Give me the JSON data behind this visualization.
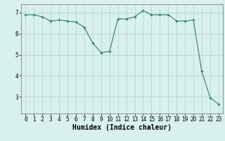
{
  "x": [
    0,
    1,
    2,
    3,
    4,
    5,
    6,
    7,
    8,
    9,
    10,
    11,
    12,
    13,
    14,
    15,
    16,
    17,
    18,
    19,
    20,
    21,
    22,
    23
  ],
  "y": [
    6.9,
    6.9,
    6.8,
    6.6,
    6.65,
    6.6,
    6.55,
    6.3,
    5.55,
    5.1,
    5.15,
    6.7,
    6.7,
    6.8,
    7.1,
    6.9,
    6.9,
    6.9,
    6.6,
    6.6,
    6.65,
    4.2,
    2.95,
    2.65
  ],
  "line_color": "#2e7d6e",
  "marker": "+",
  "marker_size": 3,
  "marker_lw": 0.8,
  "line_width": 0.8,
  "bg_color": "#d8f0ee",
  "grid_color": "#aed4ce",
  "xlabel": "Humidex (Indice chaleur)",
  "ylabel": "",
  "ylim": [
    2.2,
    7.4
  ],
  "xlim": [
    -0.5,
    23.5
  ],
  "yticks": [
    3,
    4,
    5,
    6,
    7
  ],
  "xticks": [
    0,
    1,
    2,
    3,
    4,
    5,
    6,
    7,
    8,
    9,
    10,
    11,
    12,
    13,
    14,
    15,
    16,
    17,
    18,
    19,
    20,
    21,
    22,
    23
  ],
  "tick_fontsize": 5.5,
  "xlabel_fontsize": 7
}
